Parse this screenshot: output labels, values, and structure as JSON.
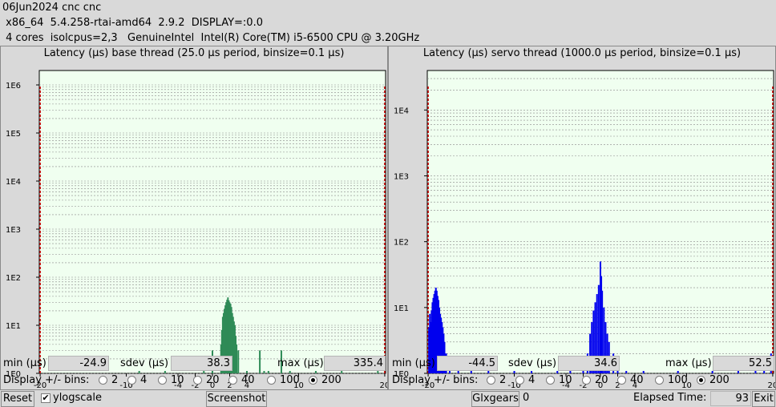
{
  "header": {
    "line1": "06Jun2024 cnc cnc",
    "line2": " x86_64  5.4.258-rtai-amd64  2.9.2  DISPLAY=:0.0",
    "line3": " 4 cores  isolcpus=2,3   GenuineIntel  Intel(R) Core(TM) i5-6500 CPU @ 3.20GHz"
  },
  "base": {
    "title": "Latency (µs) base thread (25.0 µs period, binsize=0.1 µs)",
    "min_label": "min (µs)",
    "min_value": "-24.9",
    "sdev_label": "sdev (µs)",
    "sdev_value": "38.3",
    "max_label": "max (µs)",
    "max_value": "335.4",
    "bins_label": "Display +/- bins:",
    "bins_options": [
      "2",
      "4",
      "10",
      "20",
      "40",
      "100",
      "200"
    ],
    "bins_selected": "200"
  },
  "servo": {
    "title": "Latency (µs) servo thread (1000.0 µs period, binsize=0.1 µs)",
    "min_label": "min (µs)",
    "min_value": "-44.5",
    "sdev_label": "sdev (µs)",
    "sdev_value": "34.6",
    "max_label": "max (µs)",
    "max_value": "52.5",
    "bins_label": "Display +/- bins:",
    "bins_options": [
      "2",
      "4",
      "10",
      "20",
      "40",
      "100",
      "200"
    ],
    "bins_selected": "200"
  },
  "footer": {
    "reset_label": "Reset",
    "ylogscale_label": "ylogscale",
    "ylogscale_checked": "✔",
    "screenshot_label": "Screenshot",
    "glxgears_label": "Glxgears",
    "glxgears_value": "0",
    "elapsed_label": "Elapsed Time:",
    "elapsed_value": "93",
    "exit_label": "Exit"
  },
  "colors": {
    "base_bars": "#2e8b57",
    "servo_bars": "#0000ee",
    "plot_bg": "#f0fff0",
    "limit_line": "#cc0000"
  },
  "chart_data": [
    {
      "type": "bar",
      "title": "Latency (µs) base thread (25.0 µs period, binsize=0.1 µs)",
      "x_ticks": [
        -20,
        -10,
        -4,
        -2,
        0,
        2,
        4,
        10,
        20
      ],
      "y_ticks": [
        "1E0",
        "1E1",
        "1E2",
        "1E3",
        "1E4",
        "1E5",
        "1E6"
      ],
      "xlim": [
        -20.1,
        20.1
      ],
      "y_decades": [
        0,
        6.3
      ],
      "log_y": true,
      "limit_lines": [
        -20,
        20
      ],
      "color": "#2e8b57",
      "bars": [
        [
          -8.5,
          1
        ],
        [
          -5.5,
          1
        ],
        [
          -1,
          1
        ],
        [
          0,
          3
        ],
        [
          1,
          4
        ],
        [
          1.1,
          8
        ],
        [
          1.2,
          15
        ],
        [
          1.3,
          18
        ],
        [
          1.4,
          22
        ],
        [
          1.5,
          26
        ],
        [
          1.6,
          30
        ],
        [
          1.7,
          34
        ],
        [
          1.8,
          38
        ],
        [
          1.9,
          33
        ],
        [
          2.0,
          30
        ],
        [
          2.1,
          28
        ],
        [
          2.2,
          24
        ],
        [
          2.3,
          18
        ],
        [
          2.4,
          15
        ],
        [
          2.5,
          12
        ],
        [
          2.6,
          10
        ],
        [
          2.7,
          6
        ],
        [
          2.8,
          4
        ],
        [
          3,
          3
        ],
        [
          4,
          1
        ],
        [
          5.5,
          3
        ],
        [
          6,
          1
        ],
        [
          6.5,
          1
        ],
        [
          8,
          3
        ],
        [
          9,
          1
        ],
        [
          12,
          1
        ],
        [
          15,
          1
        ],
        [
          19.2,
          1
        ]
      ]
    },
    {
      "type": "bar",
      "title": "Latency (µs) servo thread (1000.0 µs period, binsize=0.1 µs)",
      "x_ticks": [
        -20,
        -10,
        -4,
        -2,
        0,
        2,
        4,
        10,
        20
      ],
      "y_ticks": [
        "1E0",
        "1E1",
        "1E2",
        "1E3",
        "1E4"
      ],
      "xlim": [
        -20.1,
        20.1
      ],
      "y_decades": [
        0,
        4.6
      ],
      "log_y": true,
      "limit_lines": [
        -20,
        20
      ],
      "color": "#0000ee",
      "bars": [
        [
          -19.9,
          5
        ],
        [
          -19.8,
          8
        ],
        [
          -19.7,
          6
        ],
        [
          -19.6,
          9
        ],
        [
          -19.5,
          12
        ],
        [
          -19.4,
          14
        ],
        [
          -19.3,
          16
        ],
        [
          -19.2,
          18
        ],
        [
          -19.1,
          20
        ],
        [
          -19.0,
          18
        ],
        [
          -18.9,
          15
        ],
        [
          -18.8,
          13
        ],
        [
          -18.7,
          10
        ],
        [
          -18.6,
          8
        ],
        [
          -18.5,
          7
        ],
        [
          -18.4,
          6
        ],
        [
          -18.3,
          5
        ],
        [
          -18.2,
          4
        ],
        [
          -18.1,
          3
        ],
        [
          -18.0,
          2
        ],
        [
          -17.9,
          2
        ],
        [
          -17.5,
          1
        ],
        [
          -16.5,
          1
        ],
        [
          -15,
          1
        ],
        [
          -13,
          1
        ],
        [
          -10,
          1
        ],
        [
          -8,
          1
        ],
        [
          -5,
          1
        ],
        [
          -3.5,
          1
        ],
        [
          -2,
          1
        ],
        [
          -1.5,
          2
        ],
        [
          -1.2,
          4
        ],
        [
          -1.0,
          6
        ],
        [
          -0.8,
          9
        ],
        [
          -0.6,
          12
        ],
        [
          -0.4,
          16
        ],
        [
          -0.2,
          22
        ],
        [
          0,
          50
        ],
        [
          0.1,
          30
        ],
        [
          0.2,
          18
        ],
        [
          0.4,
          10
        ],
        [
          0.6,
          6
        ],
        [
          0.8,
          4
        ],
        [
          1.0,
          3
        ],
        [
          1.5,
          2
        ],
        [
          2,
          1
        ],
        [
          3,
          1
        ],
        [
          5,
          1
        ],
        [
          9,
          1
        ],
        [
          13,
          1
        ],
        [
          16,
          1
        ],
        [
          18,
          1
        ],
        [
          19,
          1
        ],
        [
          19.8,
          2
        ]
      ]
    }
  ]
}
